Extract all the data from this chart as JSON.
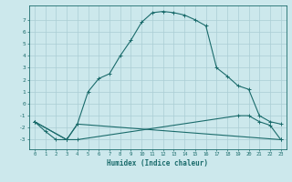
{
  "xlabel": "Humidex (Indice chaleur)",
  "bg_color": "#cce8ec",
  "grid_color": "#aacdd4",
  "line_color": "#1a6b6b",
  "xlim": [
    -0.5,
    23.5
  ],
  "ylim": [
    -3.8,
    8.2
  ],
  "yticks": [
    -3,
    -2,
    -1,
    0,
    1,
    2,
    3,
    4,
    5,
    6,
    7
  ],
  "xticks": [
    0,
    1,
    2,
    3,
    4,
    5,
    6,
    7,
    8,
    9,
    10,
    11,
    12,
    13,
    14,
    15,
    16,
    17,
    18,
    19,
    20,
    21,
    22,
    23
  ],
  "curve1_x": [
    0,
    1,
    2,
    3,
    4,
    5,
    6,
    7,
    8,
    9,
    10,
    11,
    12,
    13,
    14,
    15,
    16,
    17,
    18,
    19,
    20,
    21,
    22,
    23
  ],
  "curve1_y": [
    -1.5,
    -2.3,
    -3.0,
    -3.0,
    -1.7,
    1.0,
    2.1,
    2.5,
    4.0,
    5.3,
    6.8,
    7.6,
    7.7,
    7.6,
    7.4,
    7.0,
    6.5,
    3.0,
    2.3,
    1.5,
    1.2,
    -1.0,
    -1.5,
    -1.7
  ],
  "curve2_x": [
    0,
    3,
    4,
    23
  ],
  "curve2_y": [
    -1.5,
    -3.0,
    -1.7,
    -3.0
  ],
  "curve3_x": [
    0,
    3,
    4,
    19,
    20,
    21,
    22,
    23
  ],
  "curve3_y": [
    -1.5,
    -3.0,
    -3.0,
    -1.0,
    -1.0,
    -1.5,
    -1.8,
    -3.0
  ]
}
